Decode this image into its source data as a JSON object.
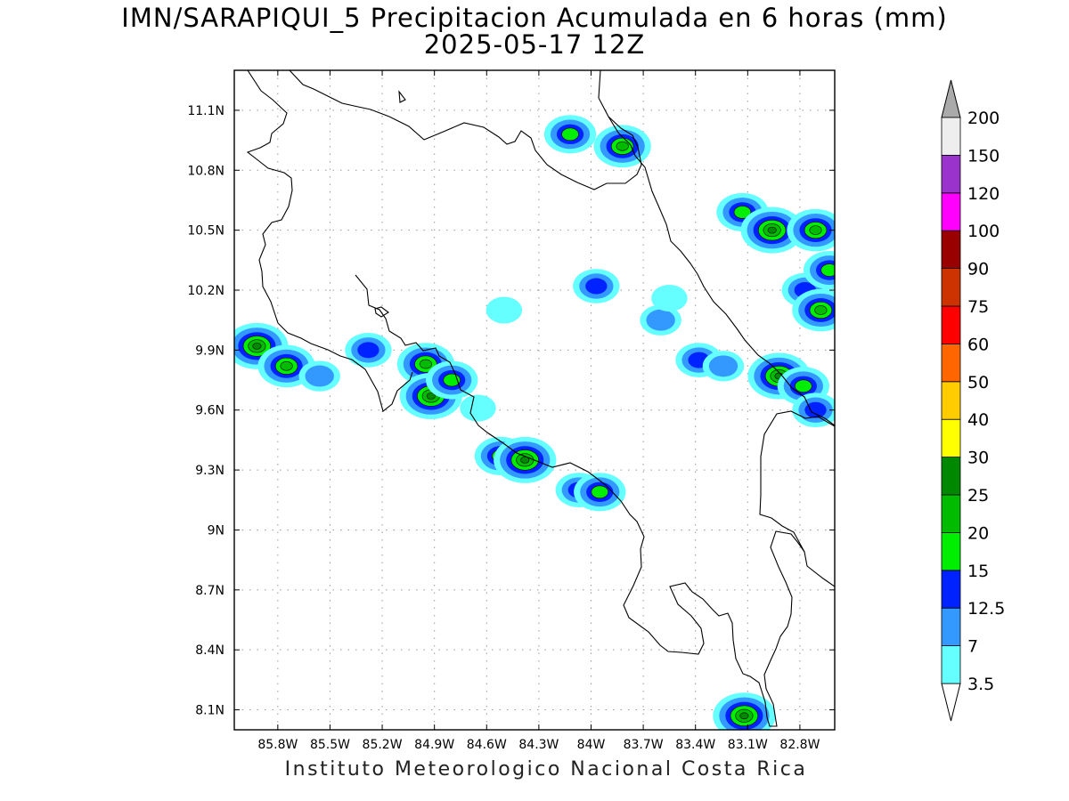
{
  "title": {
    "line1": "IMN/SARAPIQUI_5 Precipitacion Acumulada en 6 horas (mm)",
    "line2": "2025-05-17 12Z"
  },
  "footer": "Instituto Meteorologico Nacional Costa Rica",
  "axes": {
    "x_ticks": [
      "85.8W",
      "85.5W",
      "85.2W",
      "84.9W",
      "84.6W",
      "84.3W",
      "84W",
      "83.7W",
      "83.4W",
      "83.1W",
      "82.8W"
    ],
    "y_ticks": [
      "11.1N",
      "10.8N",
      "10.5N",
      "10.2N",
      "9.9N",
      "9.6N",
      "9.3N",
      "9N",
      "8.7N",
      "8.4N",
      "8.1N"
    ]
  },
  "colorbar": {
    "labels": [
      "3.5",
      "7",
      "12.5",
      "15",
      "20",
      "25",
      "30",
      "40",
      "50",
      "60",
      "75",
      "90",
      "100",
      "120",
      "150",
      "200"
    ],
    "colors": [
      "#ffffff",
      "#66ffff",
      "#3399ff",
      "#0022ff",
      "#00ee00",
      "#00bb00",
      "#008800",
      "#ffff00",
      "#ffcc00",
      "#ff6600",
      "#ff0000",
      "#cc3300",
      "#990000",
      "#ff00ff",
      "#9933cc",
      "#eeeeee"
    ],
    "top_arrow_color": "#aaaaaa",
    "bottom_arrow_color": "#ffffff"
  },
  "map": {
    "lon_range": [
      -86.05,
      -82.6
    ],
    "lat_range": [
      8.0,
      11.3
    ],
    "precip_cells": [
      {
        "lon": -85.92,
        "lat": 9.92,
        "level": 6
      },
      {
        "lon": -85.75,
        "lat": 9.82,
        "level": 5
      },
      {
        "lon": -85.56,
        "lat": 9.77,
        "level": 2
      },
      {
        "lon": -85.28,
        "lat": 9.9,
        "level": 3
      },
      {
        "lon": -84.95,
        "lat": 9.83,
        "level": 5
      },
      {
        "lon": -84.92,
        "lat": 9.67,
        "level": 6
      },
      {
        "lon": -84.8,
        "lat": 9.75,
        "level": 4
      },
      {
        "lon": -84.52,
        "lat": 9.37,
        "level": 4
      },
      {
        "lon": -84.38,
        "lat": 9.35,
        "level": 6
      },
      {
        "lon": -84.07,
        "lat": 9.2,
        "level": 3
      },
      {
        "lon": -83.95,
        "lat": 9.19,
        "level": 4
      },
      {
        "lon": -84.12,
        "lat": 10.98,
        "level": 4
      },
      {
        "lon": -83.82,
        "lat": 10.92,
        "level": 5
      },
      {
        "lon": -83.97,
        "lat": 10.22,
        "level": 3
      },
      {
        "lon": -83.6,
        "lat": 10.05,
        "level": 2
      },
      {
        "lon": -83.38,
        "lat": 9.85,
        "level": 3
      },
      {
        "lon": -83.24,
        "lat": 9.82,
        "level": 2
      },
      {
        "lon": -83.13,
        "lat": 10.59,
        "level": 4
      },
      {
        "lon": -82.96,
        "lat": 10.5,
        "level": 6
      },
      {
        "lon": -82.71,
        "lat": 10.5,
        "level": 5
      },
      {
        "lon": -82.77,
        "lat": 10.2,
        "level": 3
      },
      {
        "lon": -82.68,
        "lat": 10.1,
        "level": 5
      },
      {
        "lon": -82.92,
        "lat": 9.77,
        "level": 6
      },
      {
        "lon": -82.78,
        "lat": 9.72,
        "level": 4
      },
      {
        "lon": -82.71,
        "lat": 9.6,
        "level": 3
      },
      {
        "lon": -82.63,
        "lat": 10.3,
        "level": 4
      },
      {
        "lon": -83.12,
        "lat": 8.07,
        "level": 6
      },
      {
        "lon": -84.65,
        "lat": 9.61,
        "level": 1
      },
      {
        "lon": -84.5,
        "lat": 10.1,
        "level": 1
      },
      {
        "lon": -83.55,
        "lat": 10.16,
        "level": 1
      }
    ]
  }
}
